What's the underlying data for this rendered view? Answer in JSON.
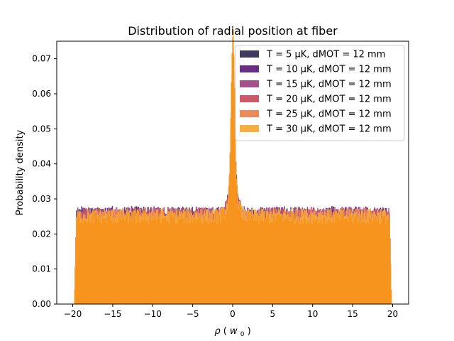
{
  "chart_data": {
    "type": "histogram",
    "title": "Distribution of radial position at fiber",
    "xlabel_symbol": "ρ",
    "xlabel_unit": "w",
    "xlabel_unit_sub": "0",
    "ylabel": "Probability density",
    "xlim": [
      -22,
      22
    ],
    "ylim": [
      0,
      0.075
    ],
    "xticks": [
      -20,
      -15,
      -10,
      -5,
      0,
      5,
      10,
      15,
      20
    ],
    "xtick_labels": [
      "−20",
      "−15",
      "−10",
      "−5",
      "0",
      "5",
      "10",
      "15",
      "20"
    ],
    "yticks": [
      0,
      0.01,
      0.02,
      0.03,
      0.04,
      0.05,
      0.06,
      0.07
    ],
    "ytick_labels": [
      "0.00",
      "0.01",
      "0.02",
      "0.03",
      "0.04",
      "0.05",
      "0.06",
      "0.07"
    ],
    "legend_position": "top-right",
    "support_range": [
      -19.8,
      19.8
    ],
    "bin_width": 0.08,
    "series": [
      {
        "name": "T = 5 μK, dMOT = 12 mm",
        "color": "#3f3a5e",
        "plateau": 0.0255,
        "peak": 0.064
      },
      {
        "name": "T = 10 μK, dMOT = 12 mm",
        "color": "#6b2f82",
        "plateau": 0.0258,
        "peak": 0.06
      },
      {
        "name": "T = 15 μK, dMOT = 12 mm",
        "color": "#a4508b",
        "plateau": 0.0256,
        "peak": 0.058
      },
      {
        "name": "T = 20 μK, dMOT = 12 mm",
        "color": "#cc5a66",
        "plateau": 0.0254,
        "peak": 0.062
      },
      {
        "name": "T = 25 μK, dMOT = 12 mm",
        "color": "#ed8a5c",
        "plateau": 0.0252,
        "peak": 0.066
      },
      {
        "name": "T = 30 μK, dMOT = 12 mm",
        "color": "#f5b041",
        "plateau": 0.025,
        "peak": 0.0715
      }
    ],
    "fill_color": "#f7941d"
  }
}
